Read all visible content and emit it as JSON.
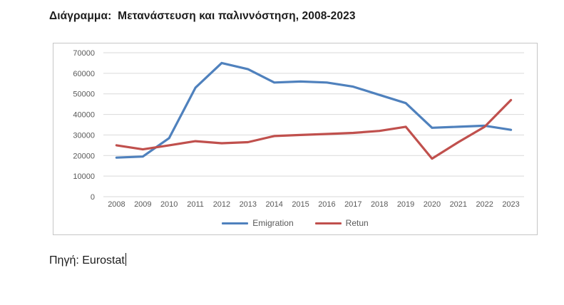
{
  "document": {
    "title": "Διάγραμμα:  Μετανάστευση και παλιννόστηση, 2008-2023",
    "source": "Πηγή: Eurostat"
  },
  "chart_data": {
    "type": "line",
    "title": "Μετανάστευση και παλιννόστηση, 2008-2023",
    "categories": [
      "2008",
      "2009",
      "2010",
      "2011",
      "2012",
      "2013",
      "2014",
      "2015",
      "2016",
      "2017",
      "2018",
      "2019",
      "2020",
      "2021",
      "2022",
      "2023"
    ],
    "series": [
      {
        "name": "Emigration",
        "color": "#4f81bd",
        "values": [
          19000,
          19500,
          28500,
          53000,
          65000,
          62000,
          55500,
          56000,
          55500,
          53500,
          49500,
          45500,
          33500,
          34000,
          34500,
          32500
        ]
      },
      {
        "name": "Retun",
        "color": "#c0504d",
        "values": [
          25000,
          23000,
          25000,
          27000,
          26000,
          26500,
          29500,
          30000,
          30500,
          31000,
          32000,
          34000,
          18500,
          26500,
          34000,
          47000
        ]
      }
    ],
    "xlabel": "",
    "ylabel": "",
    "ylim": [
      0,
      70000
    ],
    "ytick_step": 10000,
    "grid": true,
    "legend_position": "bottom",
    "axis_color": "#595959",
    "gridline_color": "#d9d9d9"
  }
}
